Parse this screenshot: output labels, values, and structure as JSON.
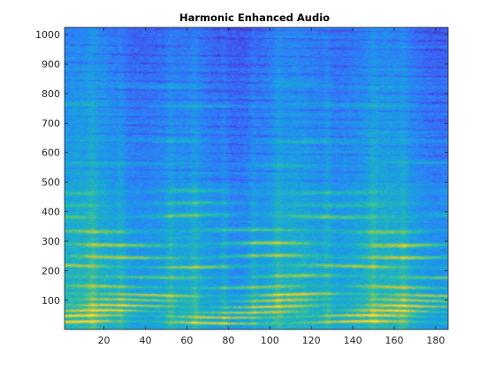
{
  "chart_data": {
    "type": "heatmap",
    "title": "Harmonic Enhanced Audio",
    "xlabel": "",
    "ylabel": "",
    "xlim": [
      1,
      186
    ],
    "ylim": [
      1,
      1024
    ],
    "xticks": [
      20,
      40,
      60,
      80,
      100,
      120,
      140,
      160,
      180
    ],
    "yticks": [
      100,
      200,
      300,
      400,
      500,
      600,
      700,
      800,
      900,
      1000
    ],
    "colormap": "parula",
    "grid": false,
    "strong_harmonic_bands": [
      {
        "freq": 25,
        "strength": 0.95
      },
      {
        "freq": 45,
        "strength": 0.9
      },
      {
        "freq": 62,
        "strength": 0.85
      },
      {
        "freq": 80,
        "strength": 0.9
      },
      {
        "freq": 100,
        "strength": 0.75
      },
      {
        "freq": 118,
        "strength": 0.85
      },
      {
        "freq": 145,
        "strength": 0.6
      },
      {
        "freq": 180,
        "strength": 0.55
      },
      {
        "freq": 215,
        "strength": 0.65
      },
      {
        "freq": 248,
        "strength": 0.7
      },
      {
        "freq": 290,
        "strength": 0.75
      },
      {
        "freq": 335,
        "strength": 0.5
      },
      {
        "freq": 385,
        "strength": 0.55
      },
      {
        "freq": 425,
        "strength": 0.35
      },
      {
        "freq": 468,
        "strength": 0.35
      },
      {
        "freq": 560,
        "strength": 0.2
      },
      {
        "freq": 640,
        "strength": 0.2
      },
      {
        "freq": 760,
        "strength": 0.2
      },
      {
        "freq": 830,
        "strength": 0.18
      }
    ],
    "onset_columns": [
      14,
      28,
      52,
      64,
      78,
      92,
      104,
      128,
      150,
      165
    ]
  },
  "colors": {
    "colormap_stops": [
      "#3e26a8",
      "#4352ed",
      "#2c80f9",
      "#18a5dc",
      "#28bbaa",
      "#7bc564",
      "#d6c03b",
      "#f9d932"
    ],
    "axis": "#262626",
    "background": "#ffffff"
  }
}
